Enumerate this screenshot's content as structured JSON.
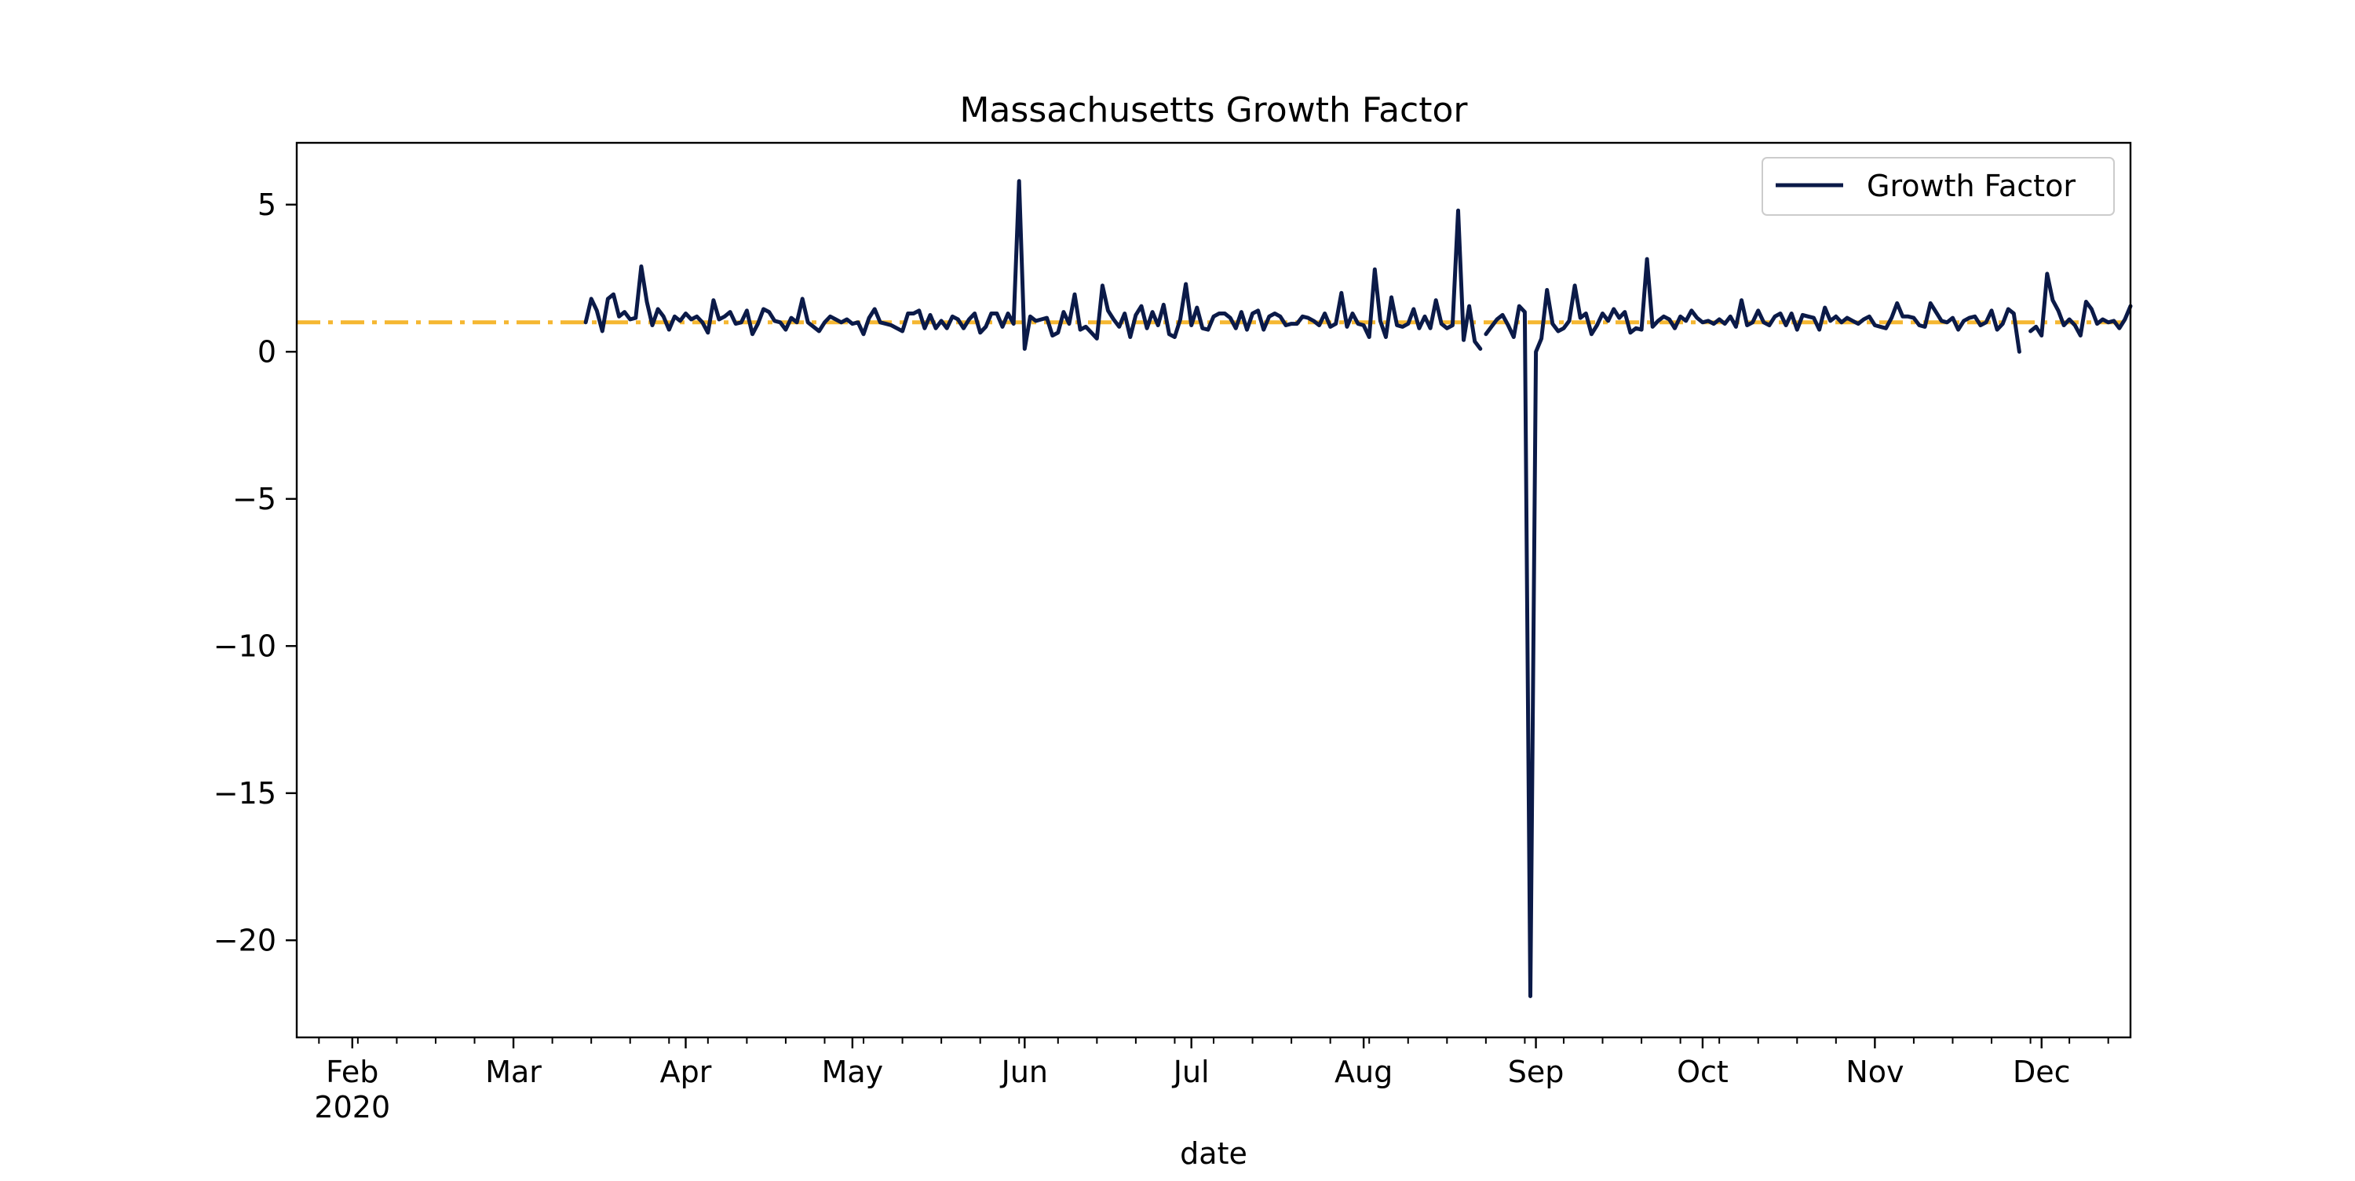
{
  "chart_data": {
    "type": "line",
    "title": "Massachusetts Growth Factor",
    "xlabel": "date",
    "ylabel": "",
    "x_range": [
      "2020-01-22",
      "2020-12-17"
    ],
    "ylim": [
      -23.3,
      7.1
    ],
    "grid": false,
    "legend": {
      "placement": "top-right",
      "entries": [
        "Growth Factor"
      ]
    },
    "x_ticks": [
      {
        "date": "2020-02-01",
        "label": "Feb",
        "sublabel": "2020"
      },
      {
        "date": "2020-03-01",
        "label": "Mar",
        "sublabel": ""
      },
      {
        "date": "2020-04-01",
        "label": "Apr",
        "sublabel": ""
      },
      {
        "date": "2020-05-01",
        "label": "May",
        "sublabel": ""
      },
      {
        "date": "2020-06-01",
        "label": "Jun",
        "sublabel": ""
      },
      {
        "date": "2020-07-01",
        "label": "Jul",
        "sublabel": ""
      },
      {
        "date": "2020-08-01",
        "label": "Aug",
        "sublabel": ""
      },
      {
        "date": "2020-09-01",
        "label": "Sep",
        "sublabel": ""
      },
      {
        "date": "2020-10-01",
        "label": "Oct",
        "sublabel": ""
      },
      {
        "date": "2020-11-01",
        "label": "Nov",
        "sublabel": ""
      },
      {
        "date": "2020-12-01",
        "label": "Dec",
        "sublabel": ""
      }
    ],
    "y_ticks": [
      {
        "value": 5,
        "label": "5"
      },
      {
        "value": 0,
        "label": "0"
      },
      {
        "value": -5,
        "label": "−5"
      },
      {
        "value": -10,
        "label": "−10"
      },
      {
        "value": -15,
        "label": "−15"
      },
      {
        "value": -20,
        "label": "−20"
      }
    ],
    "reference_line": {
      "y": 1,
      "x_start": "2020-01-22",
      "x_end": "2020-12-17",
      "color": "#f5b731",
      "style": "dash-dot"
    },
    "series": [
      {
        "name": "Growth Factor",
        "color": "#0b1a48",
        "segments": [
          {
            "start": "2020-03-14",
            "values": [
              1.0,
              1.8,
              1.4,
              0.7,
              1.8,
              1.95,
              1.2,
              1.35,
              1.1,
              1.15,
              2.9,
              1.7,
              0.9,
              1.45,
              1.2,
              0.75,
              1.2,
              1.05,
              1.3,
              1.1,
              1.2,
              1.0,
              0.65,
              1.75,
              1.1,
              1.2,
              1.35,
              0.95,
              1.0,
              1.4,
              0.6,
              0.95,
              1.45,
              1.35,
              1.05,
              1.0,
              0.75,
              1.15,
              1.0,
              1.8,
              1.0,
              0.85,
              0.7,
              1.0,
              1.2,
              1.1,
              1.0,
              1.1,
              0.95,
              1.0,
              0.6,
              1.15,
              1.45,
              1.0,
              0.95,
              0.9,
              0.8,
              0.7,
              1.3,
              1.3,
              1.4,
              0.8,
              1.25,
              0.8,
              1.05,
              0.8,
              1.2,
              1.1,
              0.8,
              1.1,
              1.3,
              0.65,
              0.85,
              1.3,
              1.3,
              0.85,
              1.3,
              0.95,
              5.8,
              0.1,
              1.2,
              1.05,
              1.1,
              1.15,
              0.55,
              0.65,
              1.35,
              0.95,
              1.95,
              0.75,
              0.85,
              0.65,
              0.45,
              2.25,
              1.4,
              1.1,
              0.85,
              1.3,
              0.5,
              1.25,
              1.55,
              0.8,
              1.35,
              0.9,
              1.6,
              0.6,
              0.5,
              1.1,
              2.3,
              0.9,
              1.5,
              0.8,
              0.75,
              1.2,
              1.3,
              1.3,
              1.15,
              0.8,
              1.35,
              0.75,
              1.3,
              1.4,
              0.75,
              1.2,
              1.3,
              1.2,
              0.9,
              0.95,
              0.95,
              1.2,
              1.15,
              1.05,
              0.9,
              1.3,
              0.85,
              0.95,
              2.0,
              0.85,
              1.3,
              0.95,
              0.9,
              0.5,
              2.8,
              1.05,
              0.5,
              1.85,
              0.9,
              0.85,
              0.95,
              1.45,
              0.8,
              1.2,
              0.8,
              1.75,
              0.95,
              0.8,
              0.9,
              4.8,
              0.4,
              1.55,
              0.35,
              0.1
            ]
          },
          {
            "start": "2020-08-23",
            "values": [
              0.6,
              0.85,
              1.1,
              1.25,
              0.9,
              0.5,
              1.55,
              1.35,
              -21.9,
              0.0,
              0.45,
              2.1,
              0.95,
              0.7,
              0.8,
              1.05,
              2.25,
              1.15,
              1.3,
              0.6,
              0.9,
              1.3,
              1.05,
              1.45,
              1.15,
              1.35,
              0.65,
              0.8,
              0.75,
              3.15,
              0.85,
              1.05,
              1.2,
              1.1,
              0.8,
              1.2,
              1.05,
              1.4,
              1.15,
              1.0,
              1.05,
              0.95,
              1.1,
              0.95,
              1.2,
              0.85,
              1.75,
              0.9,
              1.0,
              1.4,
              1.0,
              0.9,
              1.2,
              1.3,
              0.9,
              1.3,
              0.75,
              1.25,
              1.2,
              1.15,
              0.75,
              1.5,
              1.05,
              1.2,
              1.0,
              1.15,
              1.05,
              0.95,
              1.1,
              1.2,
              0.9,
              0.85,
              0.8,
              1.15,
              1.65,
              1.2,
              1.2,
              1.15,
              0.9,
              0.85,
              1.65,
              1.35,
              1.05,
              1.0,
              1.15,
              0.75,
              1.05,
              1.15,
              1.2,
              0.9,
              1.0,
              1.4,
              0.75,
              0.95,
              1.45,
              1.3,
              0.0
            ]
          },
          {
            "start": "2020-11-29",
            "values": [
              0.7,
              0.85,
              0.55,
              2.65,
              1.75,
              1.4,
              0.9,
              1.1,
              0.9,
              0.55,
              1.7,
              1.45,
              0.95,
              1.1,
              1.0,
              1.05,
              0.8,
              1.1,
              1.55
            ]
          }
        ]
      }
    ]
  }
}
